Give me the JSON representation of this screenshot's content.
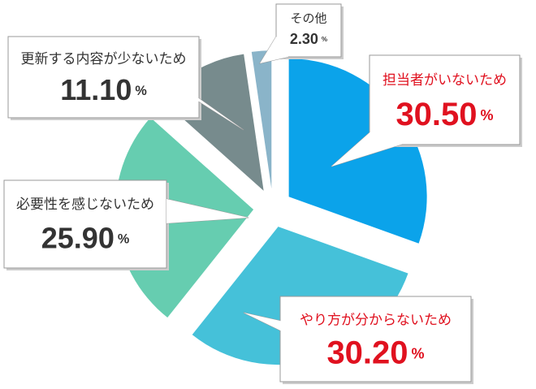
{
  "chart_data": {
    "type": "pie",
    "categories": [
      "担当者がいないため",
      "やり方が分からないため",
      "必要性を感じないため",
      "更新する内容が少ないため",
      "その他"
    ],
    "values": [
      30.5,
      30.2,
      25.9,
      11.1,
      2.3
    ],
    "value_labels": [
      "30.50%",
      "30.20%",
      "25.90%",
      "11.10%",
      "2.30%"
    ],
    "colors": [
      "#0ba3ea",
      "#45c1d9",
      "#66cdb0",
      "#778b8d",
      "#8ab4c9"
    ],
    "label_colors": [
      "#e0111f",
      "#e0111f",
      "#333333",
      "#333333",
      "#333333"
    ]
  }
}
